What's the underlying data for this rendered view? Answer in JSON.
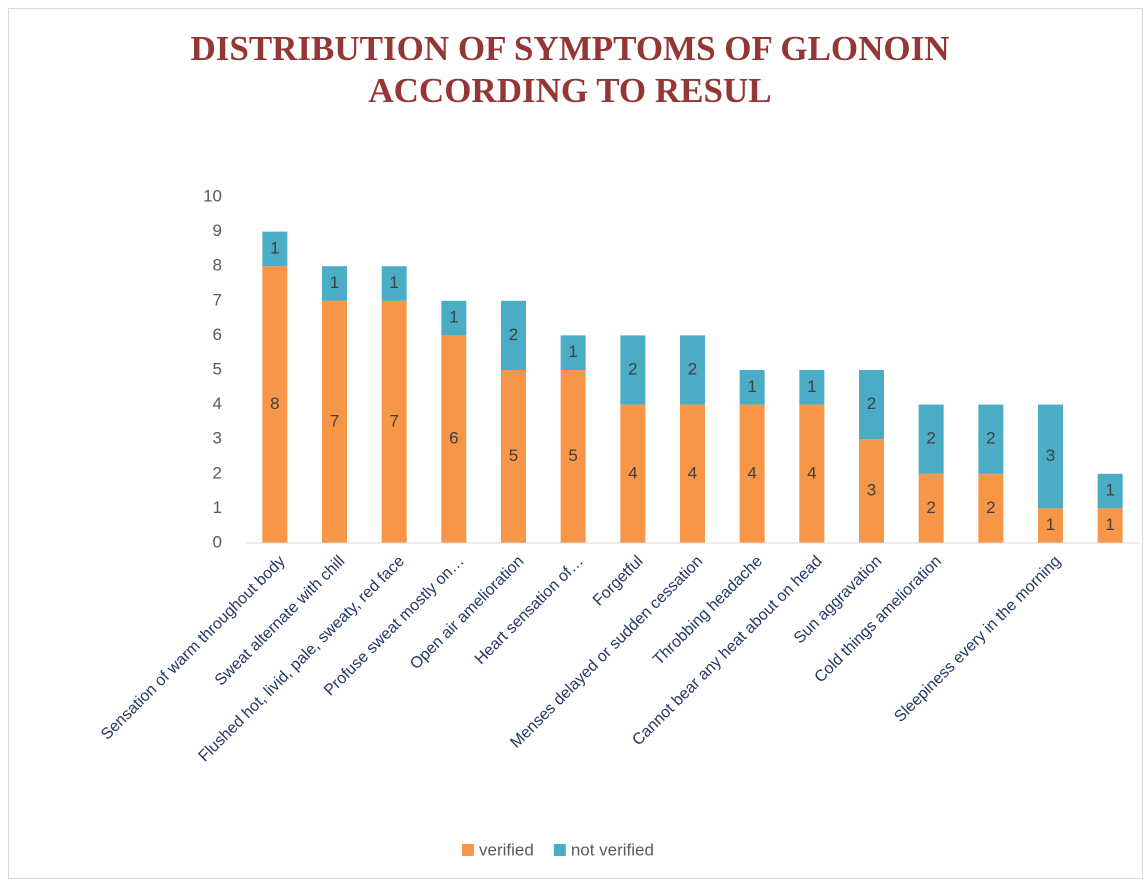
{
  "chart_data": {
    "type": "stacked_bar",
    "title": "DISTRIBUTION OF SYMPTOMS OF GLONOIN ACCORDING TO RESUL",
    "categories": [
      "Sensation of warm throughout body",
      "Sweat alternate with chill",
      "Flushed hot, livid, pale, sweaty, red face",
      "Profuse sweat mostly on…",
      "Open air amelioration",
      "Heart sensation of…",
      "Forgetful",
      "Menses delayed or sudden cessation",
      "Throbbing headache",
      "Cannot bear any heat about on head",
      "Sun aggravation",
      "Cold things amelioration",
      null,
      "Sleepiness every in the morning",
      null
    ],
    "series": [
      {
        "name": "verified",
        "color": "#f79646",
        "values": [
          8,
          7,
          7,
          6,
          5,
          5,
          4,
          4,
          4,
          4,
          3,
          2,
          2,
          1,
          1
        ]
      },
      {
        "name": "not verified",
        "color": "#4bacc6",
        "values": [
          1,
          1,
          1,
          1,
          2,
          1,
          2,
          2,
          1,
          1,
          2,
          2,
          2,
          3,
          1
        ]
      }
    ],
    "ylim": [
      0,
      10
    ],
    "yticks": [
      0,
      1,
      2,
      3,
      4,
      5,
      6,
      7,
      8,
      9,
      10
    ],
    "legend": "bottom"
  }
}
